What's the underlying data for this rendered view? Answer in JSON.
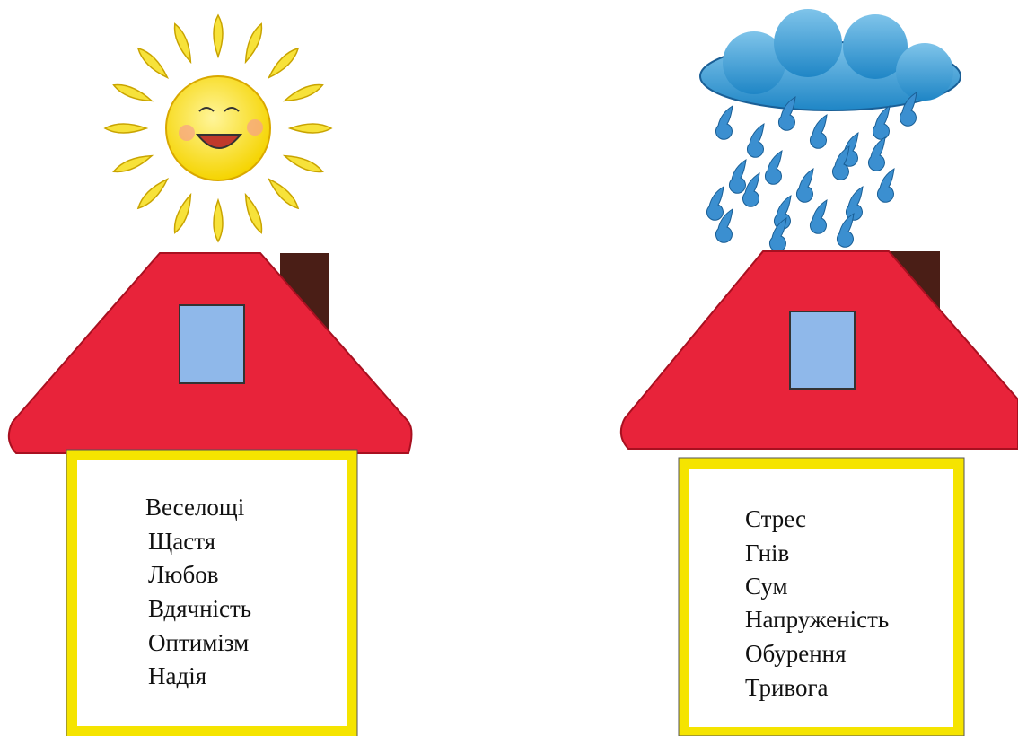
{
  "houses": [
    {
      "words": [
        "Веселощі",
        "Щастя",
        "Любов",
        "Вдячність",
        "Оптимізм",
        "Надія"
      ]
    },
    {
      "words": [
        "Стрес",
        "Гнів",
        "Сум",
        "Напруженість",
        "Обурення",
        "Тривога"
      ]
    }
  ]
}
